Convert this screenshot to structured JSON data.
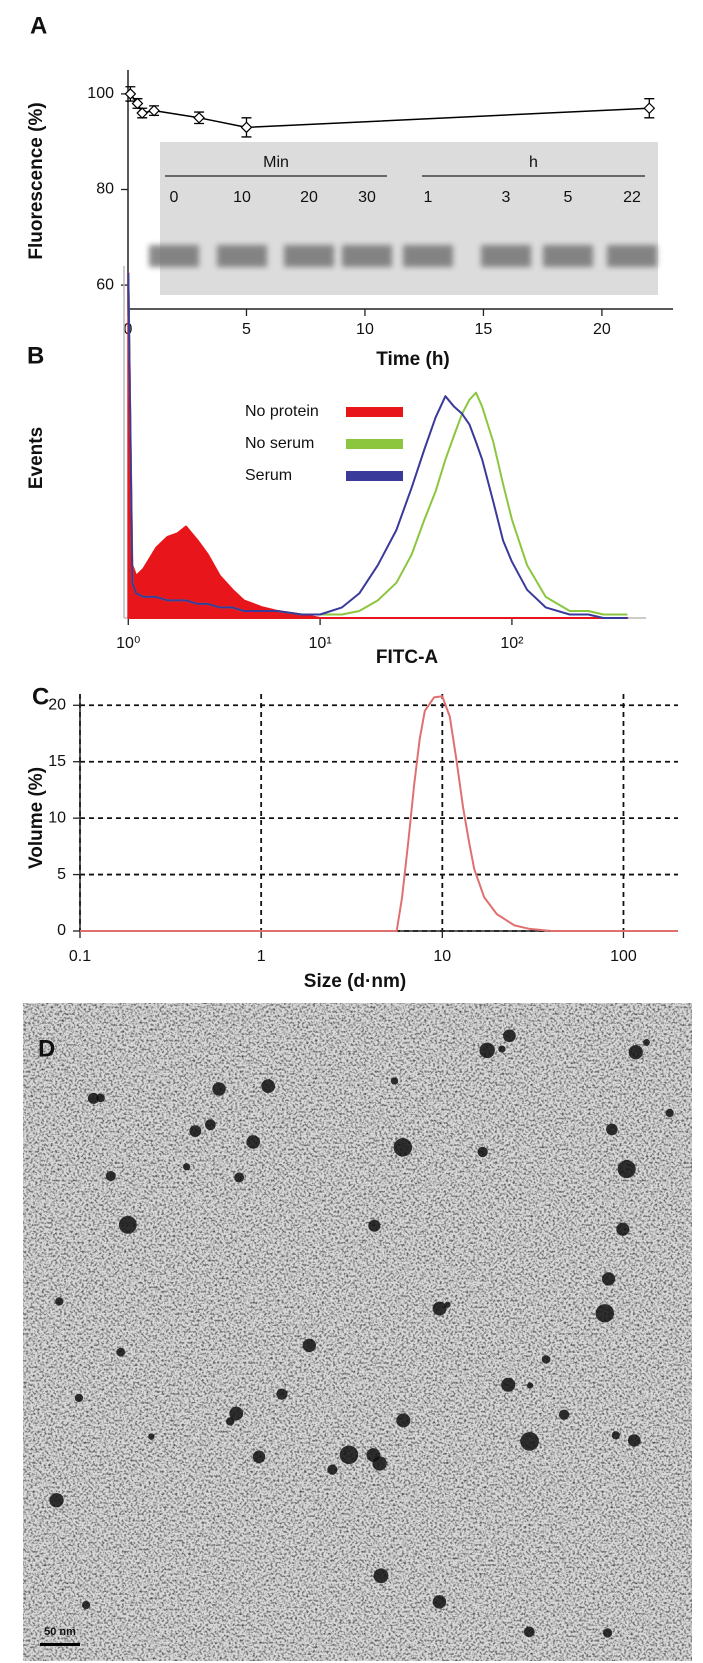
{
  "chart_data": [
    {
      "type": "line",
      "panel": "A",
      "xlabel": "Time (h)",
      "ylabel": "Fluorescence (%)",
      "x": [
        0.1,
        0.4,
        0.6,
        1.1,
        3,
        5,
        22
      ],
      "series": [
        {
          "color": "#000000",
          "values": [
            100,
            98,
            96,
            96.5,
            95,
            93,
            97
          ],
          "errors": [
            1.5,
            1,
            1,
            1,
            1.2,
            2,
            2
          ]
        }
      ],
      "markers": "diamond",
      "xlim": [
        0,
        23
      ],
      "ylim": [
        55,
        105
      ],
      "xticks": [
        0,
        5,
        10,
        15,
        20
      ],
      "yticks": [
        60,
        80,
        100
      ],
      "inset": {
        "group_labels": [
          "Min",
          "h"
        ],
        "lane_labels": [
          "0",
          "10",
          "20",
          "30",
          "1",
          "3",
          "5",
          "22"
        ]
      }
    },
    {
      "type": "line",
      "panel": "B",
      "xlabel": "FITC-A",
      "ylabel": "Events",
      "xscale": "log",
      "x": [
        1,
        1.05,
        1.1,
        1.2,
        1.4,
        1.6,
        1.8,
        2,
        2.3,
        2.6,
        3,
        3.5,
        4,
        5,
        6,
        8,
        10,
        13,
        16,
        20,
        25,
        30,
        35,
        40,
        45,
        50,
        55,
        60,
        65,
        70,
        80,
        90,
        100,
        120,
        150,
        200,
        250,
        300,
        400
      ],
      "series": [
        {
          "name": "No protein",
          "color": "#e8161b",
          "fill": true,
          "values": [
            98,
            15,
            12,
            14,
            20,
            23,
            24,
            26,
            22,
            18,
            12,
            8,
            5,
            3,
            2,
            1,
            0,
            0,
            0,
            0,
            0,
            0,
            0,
            0,
            0,
            0,
            0,
            0,
            0,
            0,
            0,
            0,
            0,
            0,
            0,
            0,
            0,
            0,
            0
          ]
        },
        {
          "name": "No serum",
          "color": "#8cc63f",
          "values": [
            98,
            10,
            7,
            6,
            6,
            5,
            5,
            5,
            4,
            4,
            3,
            3,
            2,
            2,
            2,
            1,
            1,
            1,
            2,
            5,
            10,
            18,
            28,
            36,
            45,
            52,
            58,
            62,
            64,
            60,
            50,
            38,
            28,
            15,
            6,
            2,
            2,
            1,
            1
          ]
        },
        {
          "name": "Serum",
          "color": "#3a3a9a",
          "values": [
            98,
            10,
            7,
            6,
            6,
            5,
            5,
            5,
            4,
            4,
            3,
            3,
            2,
            2,
            2,
            1,
            1,
            3,
            7,
            15,
            25,
            37,
            48,
            57,
            63,
            60,
            58,
            55,
            50,
            45,
            33,
            22,
            16,
            8,
            3,
            1,
            1,
            0,
            0
          ]
        }
      ],
      "xlim": [
        0.95,
        500
      ],
      "ylim": [
        0,
        100
      ],
      "xticks": [
        {
          "value": 1,
          "label": "10⁰"
        },
        {
          "value": 10,
          "label": "10¹"
        },
        {
          "value": 100,
          "label": "10²"
        }
      ],
      "legend": "top"
    },
    {
      "type": "line",
      "panel": "C",
      "xlabel": "Size (d·nm)",
      "ylabel": "Volume (%)",
      "xscale": "log",
      "x": [
        0.1,
        5.6,
        6,
        6.5,
        7,
        7.5,
        8,
        9,
        10,
        11,
        12,
        13,
        14,
        15,
        17,
        20,
        25,
        30,
        40,
        200
      ],
      "series": [
        {
          "color": "#e07070",
          "values": [
            0,
            0,
            3,
            8,
            13,
            17,
            19.5,
            20.7,
            20.8,
            19,
            15,
            11,
            8,
            5.5,
            3,
            1.5,
            0.5,
            0.2,
            0,
            0
          ]
        }
      ],
      "xlim": [
        0.1,
        200
      ],
      "ylim": [
        0,
        21
      ],
      "xticks": [
        0.1,
        1,
        10,
        100
      ],
      "yticks": [
        0,
        5,
        10,
        15,
        20
      ],
      "grid": true
    }
  ],
  "micrograph": {
    "panel": "D",
    "scale_bar": "50 nm"
  }
}
